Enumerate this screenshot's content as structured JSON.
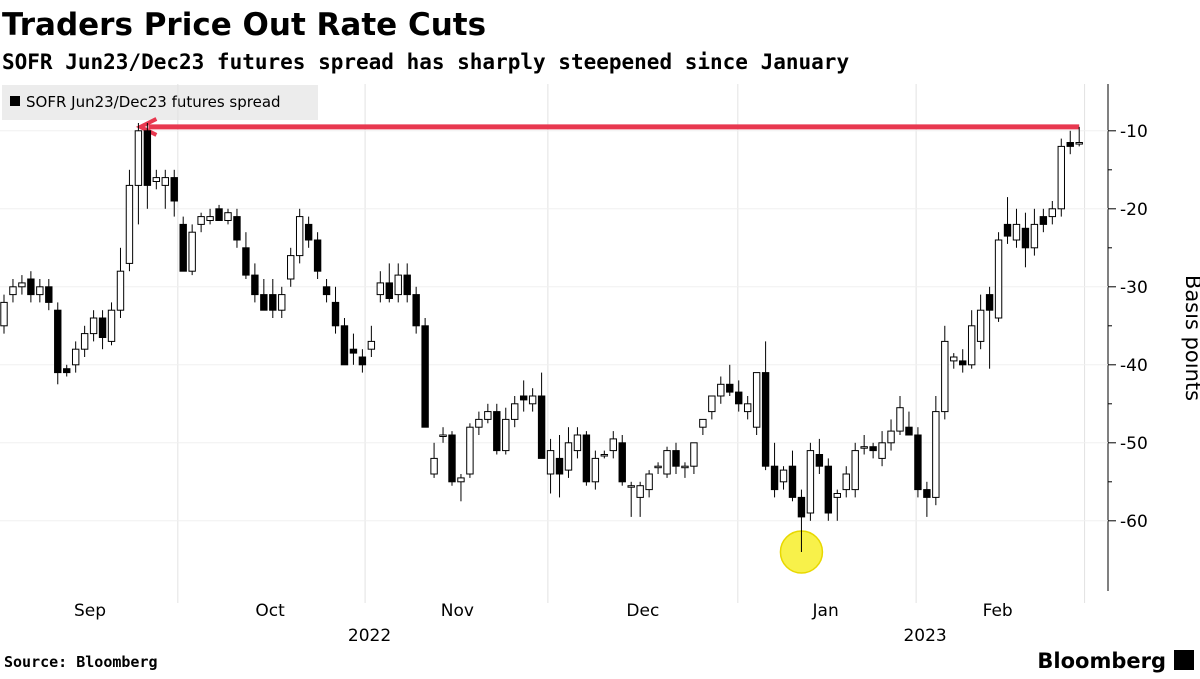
{
  "chart_data": {
    "type": "candlestick",
    "title": "Traders Price Out Rate Cuts",
    "subtitle": "SOFR Jun23/Dec23 futures spread has sharply steepened since January",
    "legend": "SOFR Jun23/Dec23 futures spread",
    "y_label": "Basis points",
    "source": "Source: Bloomberg",
    "brand": "Bloomberg",
    "ylim": [
      -69,
      -4
    ],
    "yticks": [
      -10,
      -20,
      -30,
      -40,
      -50,
      -60
    ],
    "month_labels": [
      {
        "value": 9.6,
        "label": "Sep"
      },
      {
        "value": 29.7,
        "label": "Oct"
      },
      {
        "value": 50.6,
        "label": "Nov"
      },
      {
        "value": 71.3,
        "label": "Dec"
      },
      {
        "value": 91.7,
        "label": "Jan"
      },
      {
        "value": 110.9,
        "label": "Feb"
      }
    ],
    "year_labels": [
      {
        "value": 40.8,
        "label": "2022"
      },
      {
        "value": 102.8,
        "label": "2023"
      }
    ],
    "separators": [
      19.4,
      40.3,
      60.7,
      81.9,
      101.8,
      120.6
    ],
    "up_color": "#ffffff",
    "down_color": "#000000",
    "arrow": {
      "from": 120,
      "to": 15,
      "value": -9.5,
      "color": "#e8384f"
    },
    "highlight": {
      "at": 89,
      "value": -64,
      "color": "#f7ee2a"
    },
    "candles": [
      [
        -35,
        -31,
        -36,
        -32
      ],
      [
        -31,
        -29,
        -32,
        -30
      ],
      [
        -30,
        -28.5,
        -31,
        -29.5
      ],
      [
        -29,
        -28,
        -32,
        -31
      ],
      [
        -31,
        -29,
        -32,
        -30
      ],
      [
        -30,
        -29,
        -33,
        -32
      ],
      [
        -33,
        -32,
        -42.5,
        -41
      ],
      [
        -40.5,
        -40,
        -41.5,
        -41
      ],
      [
        -40,
        -37,
        -41,
        -38
      ],
      [
        -38,
        -35,
        -39,
        -36
      ],
      [
        -36,
        -33,
        -37,
        -34
      ],
      [
        -34,
        -33,
        -38,
        -36.5
      ],
      [
        -37,
        -32,
        -37.5,
        -33
      ],
      [
        -33,
        -25,
        -34,
        -28
      ],
      [
        -27,
        -15,
        -28,
        -17
      ],
      [
        -17,
        -9,
        -22,
        -10
      ],
      [
        -10,
        -9,
        -20,
        -17
      ],
      [
        -16.5,
        -15,
        -17.5,
        -16
      ],
      [
        -17,
        -15,
        -20,
        -16
      ],
      [
        -16,
        -15,
        -21,
        -19
      ],
      [
        -22,
        -21,
        -28,
        -28
      ],
      [
        -28,
        -22,
        -28.5,
        -23
      ],
      [
        -22,
        -20.5,
        -23,
        -21
      ],
      [
        -21.5,
        -20,
        -22,
        -21
      ],
      [
        -20,
        -19.5,
        -21.5,
        -21.5
      ],
      [
        -21.5,
        -20,
        -22,
        -20.5
      ],
      [
        -21,
        -20,
        -25,
        -24
      ],
      [
        -25,
        -23,
        -29,
        -28.5
      ],
      [
        -28.5,
        -27,
        -32,
        -31
      ],
      [
        -31,
        -29,
        -33,
        -33
      ],
      [
        -31,
        -29,
        -34,
        -33
      ],
      [
        -33,
        -30,
        -34,
        -31
      ],
      [
        -29,
        -25,
        -30,
        -26
      ],
      [
        -26,
        -20,
        -27,
        -21
      ],
      [
        -22,
        -21,
        -25,
        -24
      ],
      [
        -24,
        -23,
        -29,
        -28
      ],
      [
        -30,
        -29,
        -32,
        -31
      ],
      [
        -32,
        -30,
        -36,
        -35
      ],
      [
        -35,
        -34,
        -40,
        -40
      ],
      [
        -38,
        -36,
        -40,
        -38.5
      ],
      [
        -39,
        -38,
        -41,
        -40
      ],
      [
        -38,
        -35,
        -39,
        -37
      ],
      [
        -31,
        -28,
        -32,
        -29.5
      ],
      [
        -29.5,
        -27,
        -32,
        -31.5
      ],
      [
        -31,
        -27,
        -32,
        -28.5
      ],
      [
        -28.5,
        -27,
        -32,
        -31
      ],
      [
        -31,
        -30,
        -36,
        -35
      ],
      [
        -35,
        -34,
        -48,
        -48
      ],
      [
        -54,
        -50,
        -54.5,
        -52
      ],
      [
        -49,
        -48,
        -50,
        -49
      ],
      [
        -49,
        -48.5,
        -55.5,
        -55
      ],
      [
        -55,
        -54,
        -57.5,
        -54.5
      ],
      [
        -54,
        -47.5,
        -54.5,
        -48
      ],
      [
        -48,
        -46,
        -49,
        -47
      ],
      [
        -47,
        -45,
        -47.5,
        -46
      ],
      [
        -46,
        -45,
        -51.5,
        -51
      ],
      [
        -51,
        -45.5,
        -51.5,
        -47
      ],
      [
        -47,
        -44,
        -48,
        -45
      ],
      [
        -44,
        -42,
        -46,
        -44.5
      ],
      [
        -45,
        -43,
        -46,
        -44
      ],
      [
        -44,
        -41,
        -52,
        -52
      ],
      [
        -54,
        -49.5,
        -56.5,
        -51
      ],
      [
        -52,
        -49,
        -57,
        -54
      ],
      [
        -53.5,
        -48,
        -54.5,
        -50
      ],
      [
        -51,
        -48,
        -52,
        -49
      ],
      [
        -49,
        -48.5,
        -55.5,
        -55
      ],
      [
        -55,
        -51,
        -56,
        -52
      ],
      [
        -51.5,
        -51,
        -52,
        -51.5
      ],
      [
        -51,
        -48.5,
        -52,
        -49.5
      ],
      [
        -50,
        -49,
        -55.5,
        -55
      ],
      [
        -55.5,
        -55,
        -59.5,
        -55.5
      ],
      [
        -57,
        -55,
        -59.5,
        -55.5
      ],
      [
        -56,
        -53.5,
        -57,
        -54
      ],
      [
        -53,
        -52.5,
        -54,
        -53
      ],
      [
        -54,
        -50.5,
        -54.5,
        -51
      ],
      [
        -51,
        -50,
        -54,
        -53
      ],
      [
        -53,
        -52.5,
        -54.5,
        -53
      ],
      [
        -53,
        -50,
        -54,
        -50
      ],
      [
        -48,
        -47,
        -49,
        -47
      ],
      [
        -46,
        -44,
        -47,
        -44
      ],
      [
        -44,
        -41.5,
        -45,
        -42.5
      ],
      [
        -42.5,
        -40,
        -44,
        -43.5
      ],
      [
        -43.5,
        -42,
        -46,
        -45
      ],
      [
        -46,
        -44,
        -47,
        -45
      ],
      [
        -48,
        -41,
        -49,
        -41
      ],
      [
        -41,
        -37,
        -53.5,
        -53
      ],
      [
        -53,
        -50,
        -57,
        -56
      ],
      [
        -55,
        -53,
        -56,
        -53.5
      ],
      [
        -53,
        -51,
        -57.5,
        -57
      ],
      [
        -57,
        -56,
        -64,
        -59.5
      ],
      [
        -59,
        -50,
        -60,
        -51
      ],
      [
        -51.5,
        -49.5,
        -54,
        -53
      ],
      [
        -53,
        -52,
        -60,
        -59
      ],
      [
        -57,
        -56,
        -60,
        -56.5
      ],
      [
        -56,
        -53,
        -57,
        -54
      ],
      [
        -56,
        -50,
        -57,
        -51
      ],
      [
        -50.5,
        -49,
        -51.5,
        -50.5
      ],
      [
        -50.5,
        -50,
        -52,
        -51
      ],
      [
        -52,
        -48.5,
        -53,
        -50
      ],
      [
        -50,
        -47,
        -51,
        -48.5
      ],
      [
        -48.5,
        -44,
        -49,
        -45.5
      ],
      [
        -48,
        -46,
        -49,
        -49
      ],
      [
        -49,
        -48,
        -57,
        -56
      ],
      [
        -56,
        -55,
        -59.5,
        -57
      ],
      [
        -57,
        -44,
        -58,
        -46
      ],
      [
        -46,
        -35,
        -47,
        -37
      ],
      [
        -39.5,
        -38.5,
        -40.5,
        -39
      ],
      [
        -39.5,
        -38,
        -41,
        -40
      ],
      [
        -40,
        -33,
        -40.5,
        -35
      ],
      [
        -37,
        -31,
        -38,
        -33
      ],
      [
        -31,
        -30,
        -40.5,
        -33
      ],
      [
        -34,
        -23,
        -34.5,
        -24
      ],
      [
        -22,
        -18.5,
        -24.5,
        -23.5
      ],
      [
        -24,
        -20,
        -25,
        -22
      ],
      [
        -22.5,
        -20.5,
        -27.5,
        -25
      ],
      [
        -25,
        -20,
        -26,
        -22
      ],
      [
        -21,
        -20,
        -23,
        -22
      ],
      [
        -21,
        -19,
        -22,
        -20
      ],
      [
        -20,
        -11,
        -21,
        -12
      ],
      [
        -11.5,
        -10,
        -13,
        -12
      ],
      [
        -11.7,
        -9.5,
        -12,
        -11.5
      ]
    ]
  }
}
